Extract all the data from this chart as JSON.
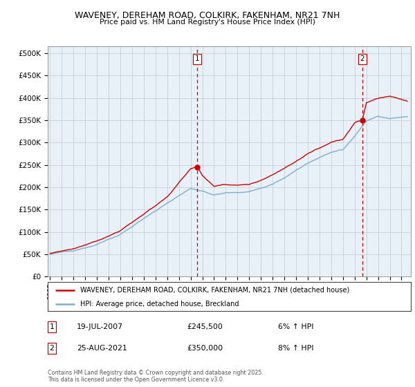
{
  "title": "WAVENEY, DEREHAM ROAD, COLKIRK, FAKENHAM, NR21 7NH",
  "subtitle": "Price paid vs. HM Land Registry's House Price Index (HPI)",
  "ylabel_ticks": [
    "£0",
    "£50K",
    "£100K",
    "£150K",
    "£200K",
    "£250K",
    "£300K",
    "£350K",
    "£400K",
    "£450K",
    "£500K"
  ],
  "ytick_values": [
    0,
    50000,
    100000,
    150000,
    200000,
    250000,
    300000,
    350000,
    400000,
    450000,
    500000
  ],
  "ylim": [
    0,
    515000
  ],
  "xlim_start": 1994.8,
  "xlim_end": 2025.8,
  "legend_line1": "WAVENEY, DEREHAM ROAD, COLKIRK, FAKENHAM, NR21 7NH (detached house)",
  "legend_line2": "HPI: Average price, detached house, Breckland",
  "marker1_label": "1",
  "marker1_x": 2007.55,
  "marker1_y": 245500,
  "marker1_date": "19-JUL-2007",
  "marker1_price": "£245,500",
  "marker1_hpi": "6% ↑ HPI",
  "marker2_label": "2",
  "marker2_x": 2021.65,
  "marker2_y": 350000,
  "marker2_date": "25-AUG-2021",
  "marker2_price": "£350,000",
  "marker2_hpi": "8% ↑ HPI",
  "price_color": "#cc0000",
  "hpi_color": "#7aadd4",
  "vline_color": "#cc0000",
  "chart_bg": "#e8f0f8",
  "footer": "Contains HM Land Registry data © Crown copyright and database right 2025.\nThis data is licensed under the Open Government Licence v3.0.",
  "background_color": "#ffffff",
  "grid_color": "#c0c8d4"
}
